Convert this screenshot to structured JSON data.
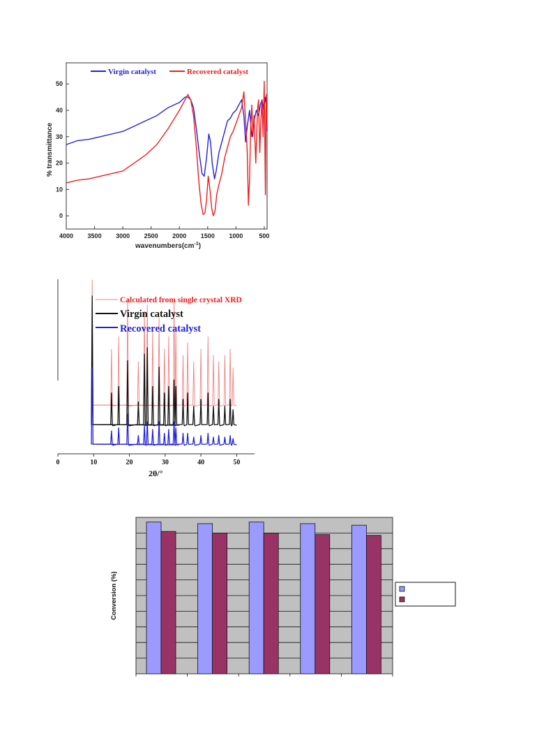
{
  "colors": {
    "blue": "#1f1fe0",
    "red": "#ee1c1c",
    "pink": "#f08080",
    "black": "#111111",
    "bar_a": "#9b9bff",
    "bar_b": "#993366",
    "plot_grey": "#c0c0c0"
  },
  "chart_data": [
    {
      "type": "line",
      "title": "",
      "xlabel": "wavenumbers(cm",
      "xlabel_sup": "-1",
      "xlabel_close": ")",
      "ylabel": "% transmittance",
      "xlim": [
        4000,
        450
      ],
      "ylim": [
        -5,
        58
      ],
      "x_ticks": [
        "4000",
        "3500",
        "3000",
        "2500",
        "2000",
        "1500",
        "1000",
        "500"
      ],
      "y_ticks": [
        "0",
        "10",
        "20",
        "30",
        "40",
        "50"
      ],
      "legend_position": "top",
      "series": [
        {
          "name": "Virgin catalyst",
          "color_key": "blue",
          "x": [
            4000,
            3800,
            3600,
            3400,
            3200,
            3000,
            2800,
            2600,
            2400,
            2300,
            2200,
            2000,
            1900,
            1850,
            1800,
            1750,
            1700,
            1650,
            1600,
            1560,
            1520,
            1480,
            1450,
            1420,
            1380,
            1350,
            1300,
            1250,
            1200,
            1150,
            1100,
            1050,
            1000,
            950,
            900,
            860,
            830,
            800,
            760,
            720,
            680,
            640,
            600,
            570,
            540,
            510,
            480,
            460,
            450
          ],
          "y": [
            27,
            28.5,
            29,
            30,
            31,
            32,
            34,
            36,
            38,
            39.5,
            41,
            43,
            45,
            45,
            44,
            41,
            33,
            24,
            16,
            15,
            22,
            31,
            28,
            20,
            14,
            17,
            24,
            28,
            32,
            36,
            37,
            39,
            40,
            42,
            44,
            38,
            28,
            34,
            40,
            30,
            36,
            40,
            38,
            42,
            44,
            40,
            45,
            41,
            32
          ]
        },
        {
          "name": "Recovered catalyst",
          "color_key": "red",
          "x": [
            4000,
            3800,
            3600,
            3400,
            3200,
            3000,
            2800,
            2600,
            2400,
            2200,
            2000,
            1900,
            1850,
            1800,
            1750,
            1700,
            1660,
            1620,
            1580,
            1550,
            1520,
            1490,
            1460,
            1430,
            1400,
            1370,
            1340,
            1300,
            1250,
            1200,
            1150,
            1100,
            1050,
            1000,
            950,
            900,
            860,
            830,
            800,
            780,
            760,
            740,
            720,
            700,
            680,
            650,
            620,
            600,
            580,
            560,
            540,
            520,
            500,
            480,
            470,
            460,
            450
          ],
          "y": [
            12.5,
            13.5,
            14,
            15,
            16,
            17,
            20,
            23,
            27,
            33,
            40,
            44,
            46,
            44,
            38,
            26,
            14,
            5,
            0.5,
            1,
            6,
            15,
            10,
            3,
            0,
            2,
            8,
            12,
            16,
            22,
            26,
            30,
            32,
            35,
            38,
            41,
            47,
            36,
            24,
            4,
            14,
            34,
            42,
            30,
            38,
            20,
            40,
            44,
            24,
            36,
            44,
            30,
            51,
            8,
            40,
            46,
            33
          ]
        }
      ]
    },
    {
      "type": "line",
      "title": "",
      "xlabel": "2θ/°",
      "ylabel": "",
      "xlim": [
        0,
        55
      ],
      "x_ticks": [
        "0",
        "10",
        "20",
        "30",
        "40",
        "50"
      ],
      "legend_position": "top-left",
      "peaks": [
        9.6,
        15.0,
        17.0,
        19.5,
        22.5,
        24.2,
        25.0,
        26.5,
        28.3,
        29.8,
        31.0,
        32.5,
        33.0,
        35.0,
        36.3,
        38.0,
        40.0,
        42.0,
        43.5,
        45.0,
        46.7,
        48.2,
        49.0
      ],
      "series": [
        {
          "name": "Calculated from single crystal XRD",
          "color_key": "pink",
          "peak_heights": [
            1.0,
            0.45,
            0.55,
            0.85,
            0.35,
            0.75,
            0.8,
            0.6,
            0.7,
            0.45,
            0.55,
            0.85,
            0.6,
            0.4,
            0.5,
            0.35,
            0.45,
            0.55,
            0.4,
            0.35,
            0.4,
            0.45,
            0.3
          ]
        },
        {
          "name": "Virgin catalyst",
          "color_key": "black",
          "peak_heights": [
            1.0,
            0.25,
            0.3,
            0.5,
            0.18,
            0.55,
            0.6,
            0.3,
            0.45,
            0.25,
            0.3,
            0.35,
            0.3,
            0.2,
            0.25,
            0.15,
            0.2,
            0.25,
            0.15,
            0.2,
            0.15,
            0.2,
            0.12
          ]
        },
        {
          "name": "Recovered catalyst",
          "color_key": "blue",
          "peak_heights": [
            1.0,
            0.18,
            0.22,
            0.4,
            0.12,
            0.25,
            0.3,
            0.2,
            0.3,
            0.15,
            0.2,
            0.3,
            0.22,
            0.15,
            0.15,
            0.1,
            0.12,
            0.15,
            0.1,
            0.12,
            0.1,
            0.12,
            0.08
          ]
        }
      ]
    },
    {
      "type": "bar",
      "title": "",
      "xlabel": "",
      "ylabel": "Conversion (%)",
      "ylim": [
        0,
        100
      ],
      "grid": true,
      "legend_position": "right",
      "categories": [
        "",
        "",
        "",
        "",
        ""
      ],
      "series": [
        {
          "color_key": "bar_a",
          "values": [
            97,
            96,
            97,
            96,
            95
          ]
        },
        {
          "color_key": "bar_b",
          "values": [
            91,
            90,
            90,
            89,
            88.5
          ]
        }
      ]
    }
  ]
}
